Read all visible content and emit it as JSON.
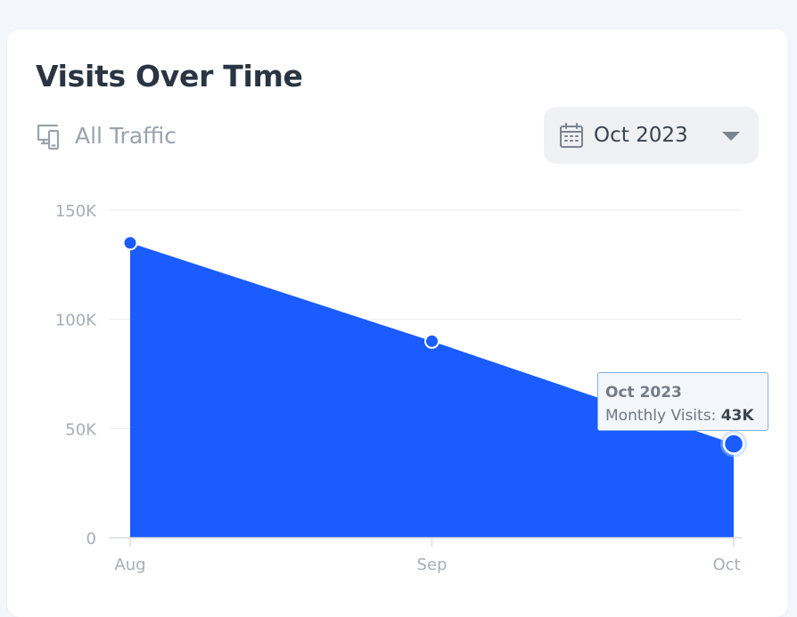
{
  "card": {
    "title": "Visits Over Time",
    "filter_label": "All Traffic",
    "filter_icon": "devices-icon"
  },
  "date_select": {
    "value": "Oct 2023",
    "icon": "calendar-icon",
    "caret_icon": "caret-down-icon"
  },
  "tooltip": {
    "title": "Oct 2023",
    "label": "Monthly Visits: ",
    "value": "43K"
  },
  "colors": {
    "area_fill": "#1a5cff",
    "title_text": "#2a3442",
    "muted_text": "#9aa2ad",
    "gridline": "#e8ebef"
  },
  "chart_data": {
    "type": "area",
    "categories": [
      "Aug",
      "Sep",
      "Oct"
    ],
    "series": [
      {
        "values": [
          135000,
          90000,
          43000
        ]
      }
    ],
    "ylim": [
      0,
      150000
    ],
    "yticks": [
      0,
      50000,
      100000,
      150000
    ],
    "ytick_labels": [
      "0",
      "50K",
      "100K",
      "150K"
    ],
    "grid": true,
    "highlighted_index": 2
  }
}
